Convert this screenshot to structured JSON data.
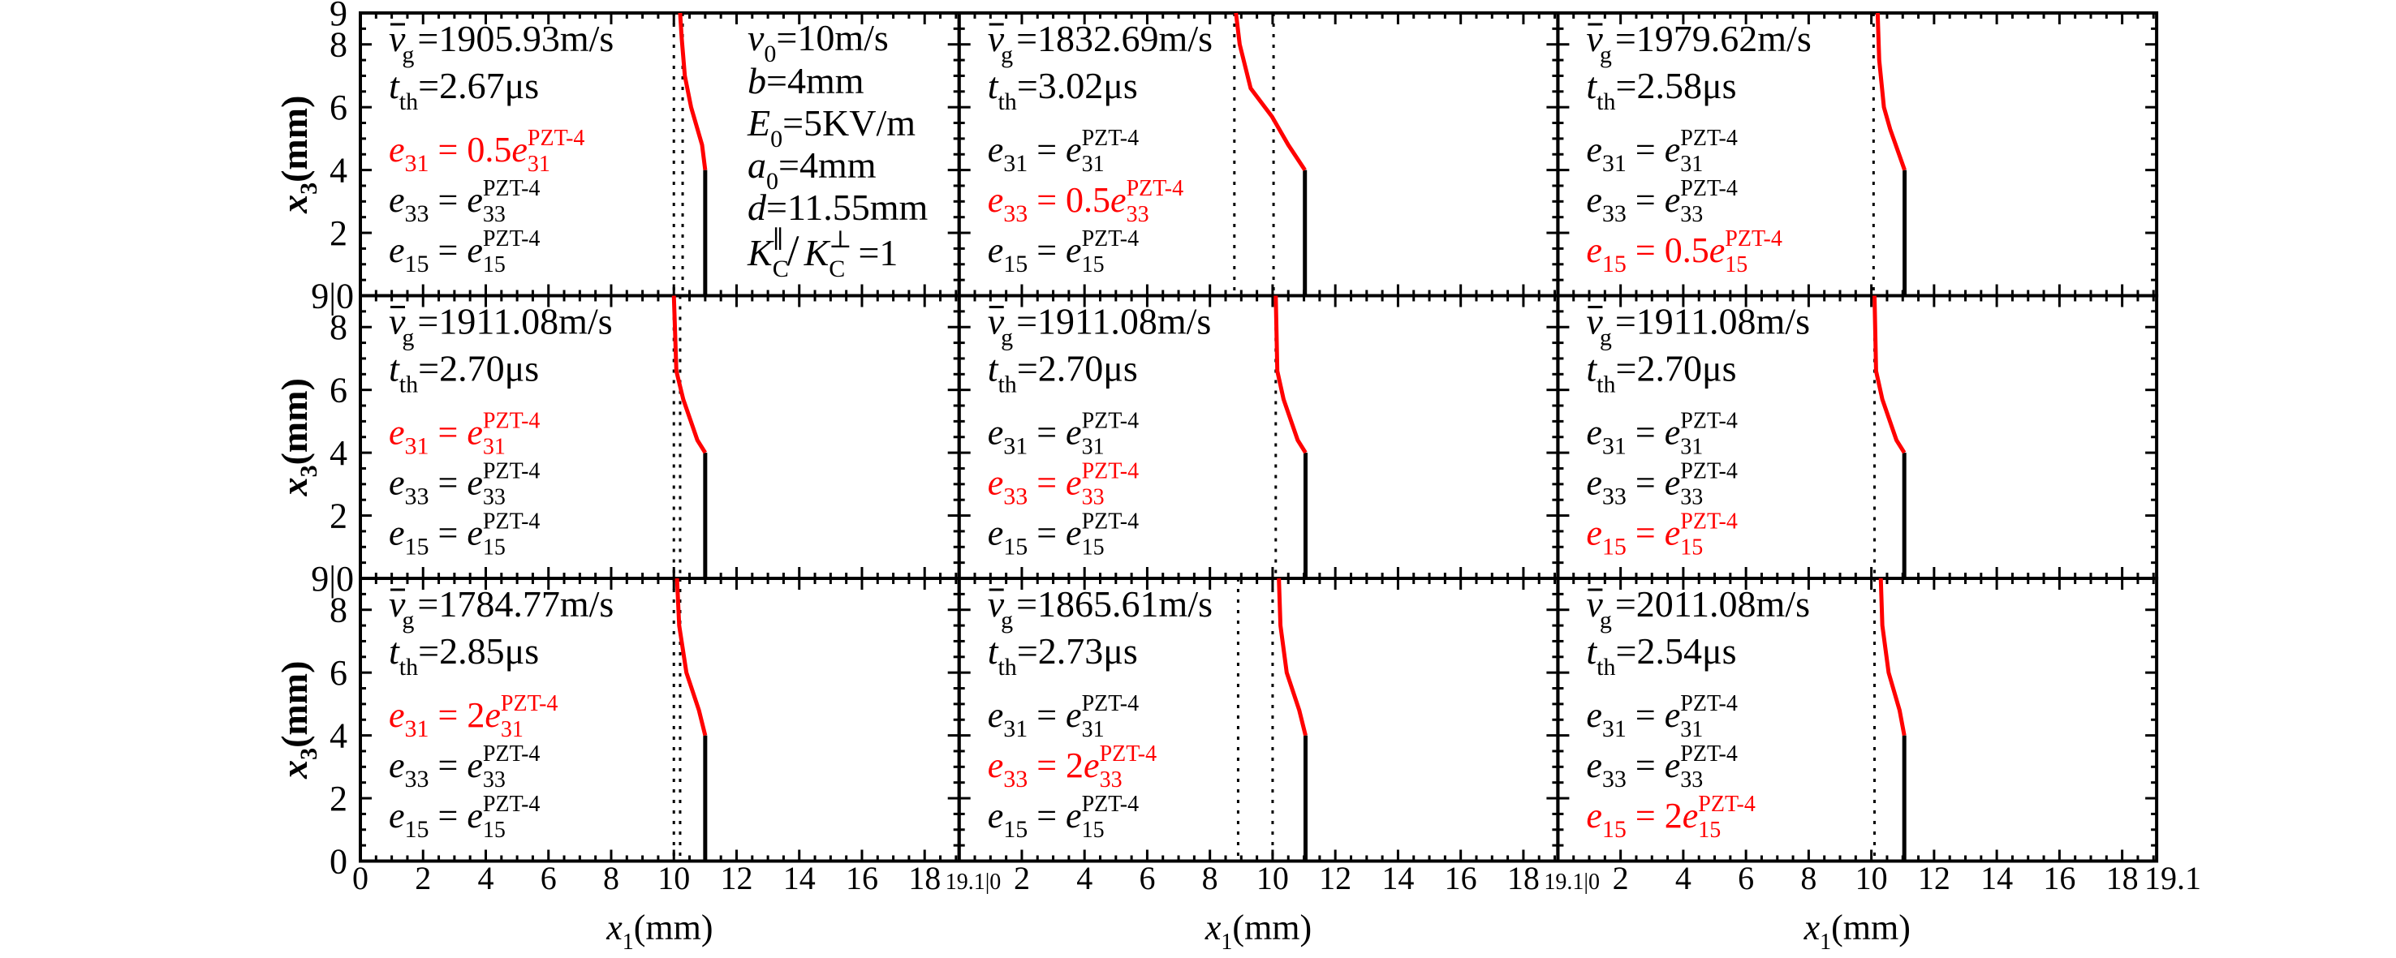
{
  "chart_data": {
    "type": "line",
    "layout": "3x3 panels",
    "xlabel": "x1(mm)",
    "ylabel": "x3(mm)",
    "xlim": [
      0,
      19.1
    ],
    "ylim": [
      0,
      9
    ],
    "x_ticks": [
      "0",
      "2",
      "4",
      "6",
      "8",
      "10",
      "12",
      "14",
      "16",
      "18"
    ],
    "x_junction_label": "19.1|0",
    "x_end_label": "19.1",
    "y_ticks": [
      "2",
      "4",
      "6",
      "8"
    ],
    "y_top_label": "9",
    "y_junction_label": "9|0",
    "y_bottom_label": "0",
    "grid": false,
    "colors": {
      "crack_front": "#ff0000",
      "crack_face": "#000000",
      "highlight_text": "#ff0000"
    },
    "parameters": [
      "v0=10m/s",
      "b=4mm",
      "E0=5KV/m",
      "a0=4mm",
      "d=11.55mm",
      "KC∥/KC⊥=1"
    ],
    "parameter_parts": [
      {
        "main": "v",
        "sub": "0",
        "rest": "=10m/s"
      },
      {
        "main": "b",
        "sub": "",
        "rest": "=4mm"
      },
      {
        "main": "E",
        "sub": "0",
        "rest": "=5KV/m"
      },
      {
        "main": "a",
        "sub": "0",
        "rest": "=4mm"
      },
      {
        "main": "d",
        "sub": "",
        "rest": "=11.55mm"
      },
      {
        "main": "K",
        "sub": "C",
        "sup": "∥",
        "slash": "/",
        "main2": "K",
        "sub2": "C",
        "sup2": "⊥",
        "rest": "=1"
      }
    ],
    "panels": [
      {
        "vg": "=1905.93m/s",
        "tth": "=2.67μs",
        "e": [
          {
            "idx": "31",
            "coef": "0.5",
            "hl": true
          },
          {
            "idx": "33",
            "coef": "",
            "hl": false
          },
          {
            "idx": "15",
            "coef": "",
            "hl": false
          }
        ],
        "dotted": [
          10.0,
          10.28
        ],
        "front": [
          [
            10.2,
            9
          ],
          [
            10.25,
            8.2
          ],
          [
            10.35,
            7
          ],
          [
            10.55,
            6
          ],
          [
            10.9,
            4.8
          ],
          [
            11.0,
            4
          ]
        ],
        "face_x": 11.0
      },
      {
        "vg": "=1832.69m/s",
        "tth": "=3.02μs",
        "e": [
          {
            "idx": "31",
            "coef": "",
            "hl": false
          },
          {
            "idx": "33",
            "coef": "0.5",
            "hl": true
          },
          {
            "idx": "15",
            "coef": "",
            "hl": false
          }
        ],
        "dotted": [
          8.78,
          10.03
        ],
        "front": [
          [
            8.83,
            9
          ],
          [
            8.95,
            8
          ],
          [
            9.3,
            6.6
          ],
          [
            9.98,
            5.7
          ],
          [
            10.5,
            4.8
          ],
          [
            11.03,
            4
          ]
        ],
        "face_x": 11.03
      },
      {
        "vg": "=1979.62m/s",
        "tth": "=2.58μs",
        "e": [
          {
            "idx": "31",
            "coef": "",
            "hl": false
          },
          {
            "idx": "33",
            "coef": "",
            "hl": false
          },
          {
            "idx": "15",
            "coef": "0.5",
            "hl": true
          }
        ],
        "dotted": [
          10.07
        ],
        "front": [
          [
            10.2,
            9
          ],
          [
            10.25,
            7.5
          ],
          [
            10.4,
            6
          ],
          [
            10.6,
            5.3
          ],
          [
            11.06,
            4
          ]
        ],
        "face_x": 11.06
      },
      {
        "vg": "=1911.08m/s",
        "tth": "=2.70μs",
        "e": [
          {
            "idx": "31",
            "coef": "",
            "hl": true
          },
          {
            "idx": "33",
            "coef": "",
            "hl": false
          },
          {
            "idx": "15",
            "coef": "",
            "hl": false
          }
        ],
        "dotted": [
          10.0,
          10.2
        ],
        "front": [
          [
            10.0,
            9
          ],
          [
            10.08,
            6.6
          ],
          [
            10.3,
            5.7
          ],
          [
            10.75,
            4.4
          ],
          [
            11.0,
            4
          ]
        ],
        "face_x": 11.0
      },
      {
        "vg": "=1911.08m/s",
        "tth": "=2.70μs",
        "e": [
          {
            "idx": "31",
            "coef": "",
            "hl": false
          },
          {
            "idx": "33",
            "coef": "",
            "hl": true
          },
          {
            "idx": "15",
            "coef": "",
            "hl": false
          }
        ],
        "dotted": [
          10.1
        ],
        "front": [
          [
            10.1,
            9
          ],
          [
            10.15,
            6.6
          ],
          [
            10.35,
            5.7
          ],
          [
            10.8,
            4.4
          ],
          [
            11.05,
            4
          ]
        ],
        "face_x": 11.05
      },
      {
        "vg": "=1911.08m/s",
        "tth": "=2.70μs",
        "e": [
          {
            "idx": "31",
            "coef": "",
            "hl": false
          },
          {
            "idx": "33",
            "coef": "",
            "hl": false
          },
          {
            "idx": "15",
            "coef": "",
            "hl": true
          }
        ],
        "dotted": [
          10.1
        ],
        "front": [
          [
            10.1,
            9
          ],
          [
            10.15,
            6.6
          ],
          [
            10.35,
            5.7
          ],
          [
            10.8,
            4.4
          ],
          [
            11.05,
            4
          ]
        ],
        "face_x": 11.05
      },
      {
        "vg": "=1784.77m/s",
        "tth": "=2.85μs",
        "e": [
          {
            "idx": "31",
            "coef": "2",
            "hl": true
          },
          {
            "idx": "33",
            "coef": "",
            "hl": false
          },
          {
            "idx": "15",
            "coef": "",
            "hl": false
          }
        ],
        "dotted": [
          10.0,
          10.2
        ],
        "front": [
          [
            10.1,
            9
          ],
          [
            10.17,
            7.5
          ],
          [
            10.4,
            6
          ],
          [
            10.8,
            4.8
          ],
          [
            11.0,
            4
          ]
        ],
        "face_x": 11.0
      },
      {
        "vg": "=1865.61m/s",
        "tth": "=2.73μs",
        "e": [
          {
            "idx": "31",
            "coef": "",
            "hl": false
          },
          {
            "idx": "33",
            "coef": "2",
            "hl": true
          },
          {
            "idx": "15",
            "coef": "",
            "hl": false
          }
        ],
        "dotted": [
          8.9,
          10.0
        ],
        "front": [
          [
            10.2,
            9
          ],
          [
            10.25,
            7.5
          ],
          [
            10.45,
            6
          ],
          [
            10.85,
            4.8
          ],
          [
            11.05,
            4
          ]
        ],
        "face_x": 11.05
      },
      {
        "vg": "=2011.08m/s",
        "tth": "=2.54μs",
        "e": [
          {
            "idx": "31",
            "coef": "",
            "hl": false
          },
          {
            "idx": "33",
            "coef": "",
            "hl": false
          },
          {
            "idx": "15",
            "coef": "2",
            "hl": true
          }
        ],
        "dotted": [
          10.1
        ],
        "front": [
          [
            10.3,
            9
          ],
          [
            10.35,
            7.5
          ],
          [
            10.55,
            6
          ],
          [
            10.9,
            4.8
          ],
          [
            11.05,
            4
          ]
        ],
        "face_x": 11.05
      }
    ],
    "labels": {
      "v": "v",
      "g": "g",
      "t": "t",
      "th": "th",
      "e": "e",
      "eq": " = ",
      "sup": "PZT-4"
    }
  }
}
